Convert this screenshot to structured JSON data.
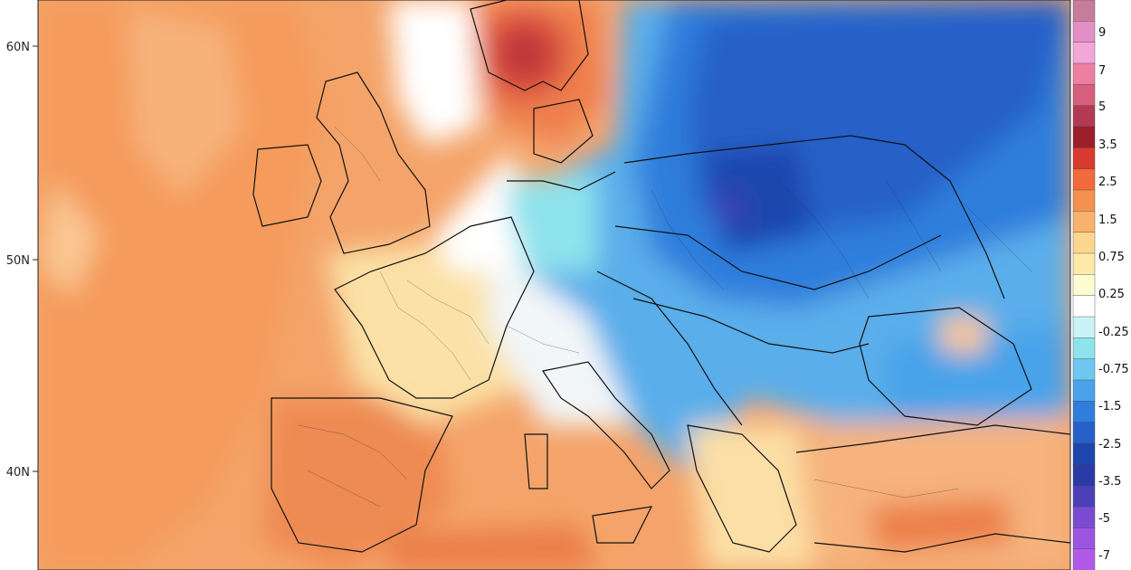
{
  "map": {
    "latitude_labels": [
      "60N",
      "50N",
      "40N"
    ],
    "colors": {
      "ocean_warm": "#f4a46a",
      "land_warm": "#f6b984",
      "strong_warm": "#e8734a",
      "hot_core": "#c8323a",
      "neutral": "#ffffff",
      "light_cool": "#9fe6f0",
      "mid_cool": "#5aaeea",
      "deep_cool": "#2a6ec8",
      "deepest_cool": "#1c4fa6"
    }
  },
  "colorbar": {
    "labels": [
      "9",
      "7",
      "5",
      "3.5",
      "2.5",
      "1.5",
      "0.75",
      "0.25",
      "-0.25",
      "-0.75",
      "-1.5",
      "-2.5",
      "-3.5",
      "-5",
      "-7"
    ],
    "swatches": [
      "#c77d9a",
      "#e38fc7",
      "#f3a7d7",
      "#ef7ea3",
      "#d75e7c",
      "#b23a53",
      "#9b1e2b",
      "#d93a2f",
      "#f06a3c",
      "#f5914e",
      "#f8b26b",
      "#fcd58e",
      "#fdeaa8",
      "#fffbd0",
      "#ffffff",
      "#c9f3f6",
      "#8fe3ec",
      "#6fc6f0",
      "#4aa3ea",
      "#2f7edc",
      "#2760c8",
      "#1e46ad",
      "#2a3ba8",
      "#4b40b8",
      "#7a4bd0",
      "#9c55e0",
      "#b25ae8"
    ]
  }
}
